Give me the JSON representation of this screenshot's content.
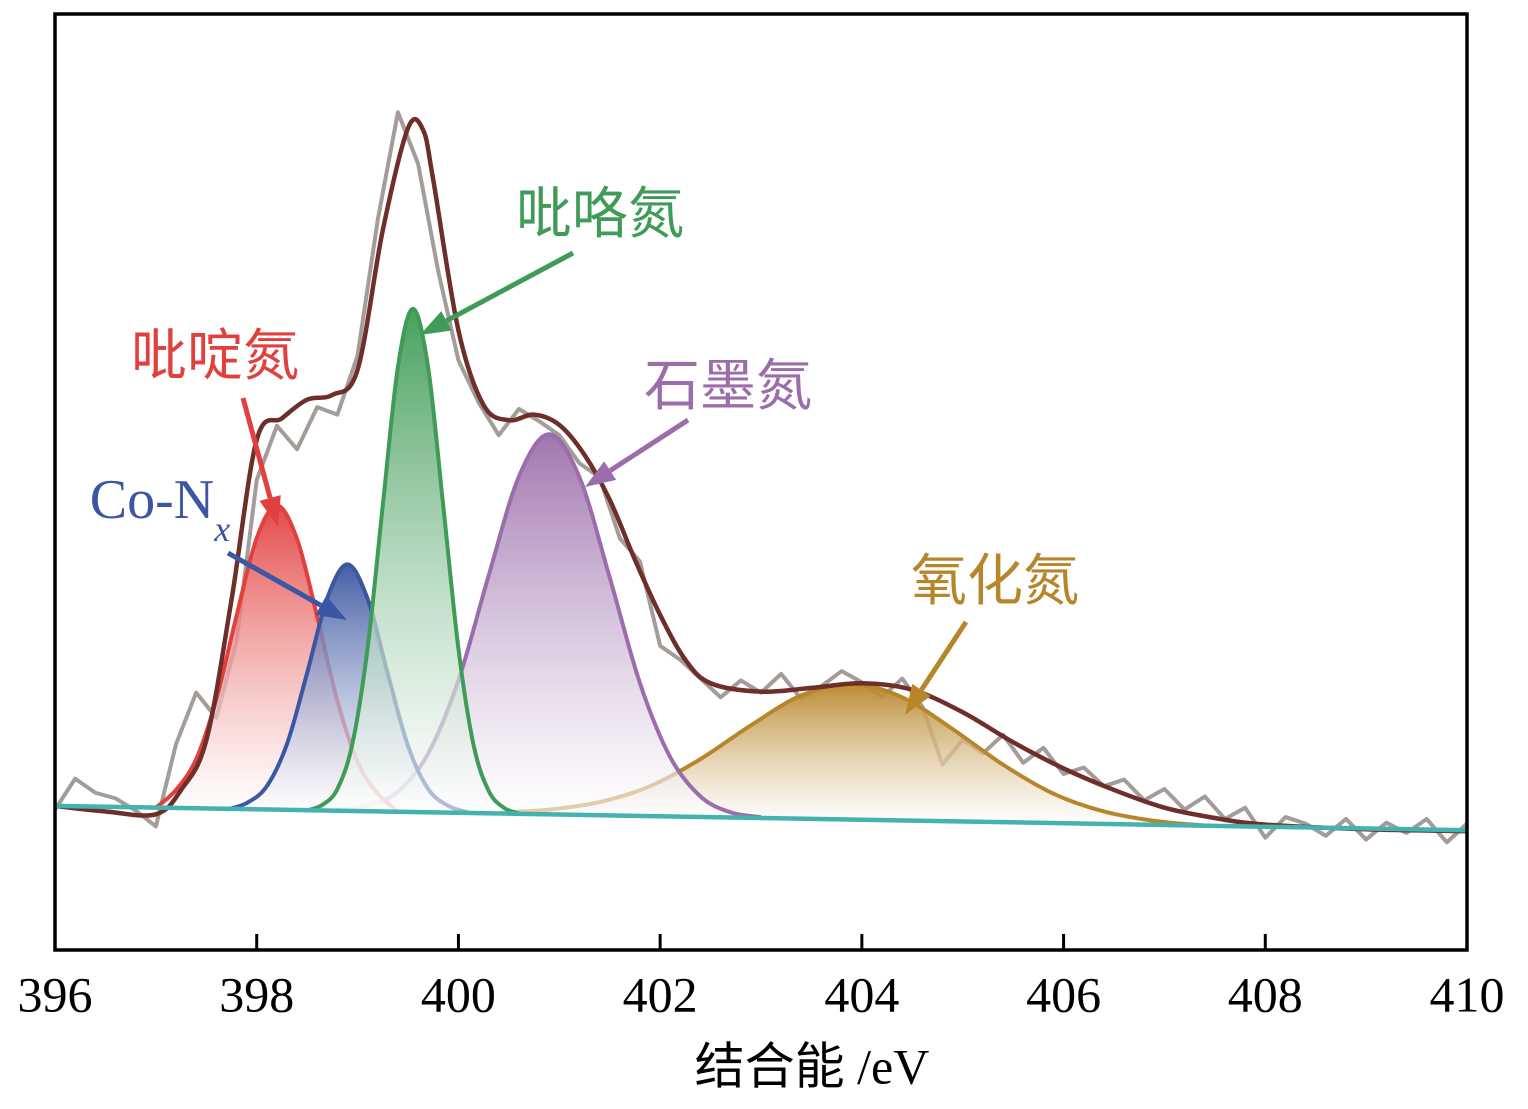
{
  "chart_data": {
    "type": "line",
    "xlabel": "结合能 /eV",
    "xlim": [
      396,
      410
    ],
    "xticks": [
      396,
      398,
      400,
      402,
      404,
      406,
      408,
      410
    ],
    "ylim": [
      0,
      100
    ],
    "series": [
      {
        "color": "#a39c98",
        "x": [
          396.0,
          396.2,
          396.4,
          396.6,
          396.8,
          397.0,
          397.2,
          397.4,
          397.6,
          397.8,
          398.0,
          398.2,
          398.4,
          398.6,
          398.8,
          399.0,
          399.2,
          399.4,
          399.6,
          399.8,
          400.0,
          400.2,
          400.4,
          400.6,
          400.8,
          401.0,
          401.2,
          401.4,
          401.6,
          401.8,
          402.0,
          402.2,
          402.4,
          402.6,
          402.8,
          403.0,
          403.2,
          403.4,
          403.6,
          403.8,
          404.0,
          404.2,
          404.4,
          404.6,
          404.8,
          405.0,
          405.2,
          405.4,
          405.6,
          405.8,
          406.0,
          406.2,
          406.4,
          406.6,
          406.8,
          407.0,
          407.2,
          407.4,
          407.6,
          407.8,
          408.0,
          408.2,
          408.4,
          408.6,
          408.8,
          409.0,
          409.2,
          409.4,
          409.6,
          409.8,
          410.0
        ],
        "values": [
          15.0,
          18.3,
          16.8,
          16.2,
          14.9,
          13.2,
          22.0,
          27.5,
          24.8,
          33.0,
          50.2,
          56.0,
          53.5,
          58.0,
          57.2,
          63.5,
          78.0,
          89.5,
          84.0,
          72.5,
          63.0,
          58.5,
          55.0,
          57.8,
          56.5,
          55.0,
          52.0,
          50.5,
          44.0,
          41.5,
          32.5,
          31.0,
          29.0,
          27.0,
          28.8,
          27.5,
          29.5,
          26.8,
          28.2,
          29.8,
          28.6,
          27.0,
          29.0,
          26.0,
          19.8,
          22.5,
          21.0,
          23.0,
          20.0,
          21.6,
          18.8,
          19.5,
          17.5,
          18.2,
          16.0,
          17.2,
          15.0,
          16.4,
          14.0,
          15.2,
          12.0,
          14.2,
          13.5,
          12.2,
          14.0,
          11.8,
          13.6,
          12.5,
          14.0,
          11.5,
          13.5
        ]
      },
      {
        "name": "氧化氮",
        "color": "#b8862a",
        "fill": true,
        "x": [
          400.4,
          400.9,
          401.4,
          401.9,
          402.4,
          402.9,
          403.4,
          403.9,
          404.4,
          404.9,
          405.4,
          405.9,
          406.4,
          406.9,
          407.4
        ],
        "values": [
          14.7,
          15.0,
          15.8,
          17.5,
          20.4,
          24.0,
          27.2,
          28.4,
          27.0,
          23.6,
          19.8,
          16.7,
          14.8,
          13.8,
          13.3
        ]
      },
      {
        "name": "石墨氮",
        "color": "#9b6eab",
        "fill": true,
        "x": [
          398.8,
          399.1,
          399.4,
          399.7,
          400.0,
          400.3,
          400.6,
          400.9,
          401.2,
          401.5,
          401.8,
          402.1,
          402.4,
          402.7,
          403.0
        ],
        "values": [
          15.0,
          15.4,
          16.9,
          21.0,
          28.8,
          40.0,
          50.6,
          55.1,
          50.5,
          39.8,
          28.5,
          20.6,
          16.4,
          14.7,
          14.2
        ]
      },
      {
        "name": "吡啶氮",
        "color": "#e2403e",
        "fill": true,
        "x": [
          397.0,
          397.2,
          397.4,
          397.6,
          397.8,
          398.0,
          398.2,
          398.4,
          398.6,
          398.8,
          399.0,
          399.2,
          399.4
        ],
        "values": [
          15.2,
          17.1,
          20.4,
          26.8,
          35.7,
          44.0,
          47.5,
          43.9,
          35.6,
          26.6,
          20.1,
          16.7,
          14.8
        ]
      },
      {
        "name": "Co-N",
        "name_subscript": "x",
        "color": "#3b56a2",
        "fill": true,
        "x": [
          397.7,
          397.9,
          398.1,
          398.3,
          398.5,
          398.7,
          398.9,
          399.1,
          399.3,
          399.5,
          399.7,
          399.9,
          400.1
        ],
        "values": [
          15.0,
          15.7,
          17.5,
          22.0,
          29.6,
          37.6,
          41.2,
          37.5,
          29.5,
          21.8,
          17.2,
          15.4,
          14.7
        ]
      },
      {
        "name": "吡咯氮",
        "color": "#3f9b57",
        "fill": true,
        "x": [
          398.5,
          398.65,
          398.8,
          398.95,
          399.1,
          399.25,
          399.4,
          399.55,
          399.7,
          399.85,
          400.0,
          400.15,
          400.3,
          400.45,
          400.6
        ],
        "values": [
          14.9,
          15.5,
          17.2,
          22.1,
          32.3,
          47.5,
          62.3,
          68.5,
          62.2,
          47.4,
          32.2,
          21.9,
          17.0,
          15.2,
          14.6
        ]
      },
      {
        "color": "#6e2f2b",
        "x": [
          396,
          396.5,
          397,
          397.25,
          397.5,
          397.75,
          398,
          398.25,
          398.5,
          398.75,
          399,
          399.25,
          399.5,
          399.65,
          399.75,
          400,
          400.25,
          400.5,
          400.75,
          401,
          401.25,
          401.5,
          401.75,
          402,
          402.25,
          402.5,
          403,
          403.5,
          404,
          404.5,
          405,
          405.5,
          406,
          406.5,
          407,
          407.5,
          408,
          409,
          410
        ],
        "values": [
          15.4,
          14.8,
          14.5,
          17.1,
          22.4,
          37.4,
          54.5,
          56.8,
          58.8,
          59.3,
          62.0,
          76.9,
          87.8,
          87.6,
          82.3,
          66.2,
          58.2,
          56.6,
          57.2,
          56.1,
          52.9,
          48.1,
          41.7,
          35.8,
          31.0,
          28.5,
          27.6,
          28.0,
          28.5,
          27.8,
          25.4,
          22.2,
          19.4,
          17.1,
          15.2,
          14.1,
          13.4,
          12.9,
          12.7
        ]
      },
      {
        "color": "#43b3b0",
        "x": [
          396,
          410
        ],
        "values": [
          15.4,
          12.8
        ]
      }
    ]
  }
}
